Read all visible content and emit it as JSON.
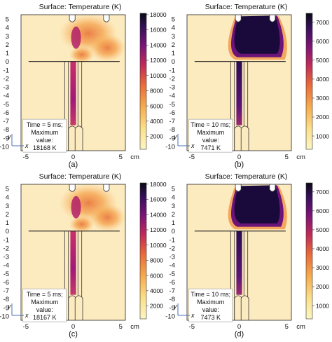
{
  "figure": {
    "panels": [
      {
        "id": "a",
        "caption": "(a)",
        "title": "Surface: Temperature (K)",
        "unit": "cm",
        "time_label": "Time = 5 ms;",
        "max_line1": "Maximum",
        "max_line2": "value:",
        "max_value": "18168 K"
      },
      {
        "id": "b",
        "caption": "(b)",
        "title": "Surface: Temperature (K)",
        "unit": "cm",
        "time_label": "Time = 10 ms;",
        "max_line1": "Maximum",
        "max_line2": "value:",
        "max_value": "7471 K"
      },
      {
        "id": "c",
        "caption": "(c)",
        "title": "Surface: Temperature (K)",
        "unit": "cm",
        "time_label": "Time = 5 ms;",
        "max_line1": "Maximum",
        "max_line2": "value:",
        "max_value": "18167 K"
      },
      {
        "id": "d",
        "caption": "(d)",
        "title": "Surface: Temperature (K)",
        "unit": "cm",
        "time_label": "Time = 10 ms;",
        "max_line1": "Maximum",
        "max_line2": "value:",
        "max_value": "7473 K"
      }
    ],
    "axis_arrow_labels": {
      "x": "x",
      "y": "y"
    },
    "colors": {
      "plot_bg": "#fdebc0",
      "jet_mid": "#f08b30",
      "jet_hot": "#b0206a",
      "jet_core": "#1a0a3c",
      "frame": "#222222"
    }
  },
  "chart_data": [
    {
      "type": "heatmap",
      "panel": "a",
      "title": "Surface: Temperature (K)",
      "unit": "cm",
      "xlim": [
        -5.5,
        5.5
      ],
      "ylim": [
        -10.5,
        5.5
      ],
      "xticks": [
        -5,
        0,
        5
      ],
      "yticks": [
        5,
        4,
        3,
        2,
        1,
        0,
        -1,
        -2,
        -3,
        -4,
        -5,
        -6,
        -7,
        -8,
        -9,
        -10
      ],
      "colorbar": {
        "min": 300,
        "max": 18168,
        "ticks": [
          18000,
          16000,
          14000,
          12000,
          10000,
          8000,
          6000,
          4000,
          2000
        ]
      },
      "annotation": [
        "Time = 5 ms;",
        "Maximum",
        "value:",
        "18168 K"
      ]
    },
    {
      "type": "heatmap",
      "panel": "b",
      "title": "Surface: Temperature (K)",
      "unit": "cm",
      "xlim": [
        -5.5,
        5.5
      ],
      "ylim": [
        -10.5,
        5.5
      ],
      "xticks": [
        -5,
        0,
        5
      ],
      "yticks": [
        5,
        4,
        3,
        2,
        1,
        0,
        -1,
        -2,
        -3,
        -4,
        -5,
        -6,
        -7,
        -8,
        -9,
        -10
      ],
      "colorbar": {
        "min": 300,
        "max": 7471,
        "ticks": [
          7000,
          6000,
          5000,
          4000,
          3000,
          2000,
          1000
        ]
      },
      "annotation": [
        "Time = 10 ms;",
        "Maximum",
        "value:",
        "7471 K"
      ]
    },
    {
      "type": "heatmap",
      "panel": "c",
      "title": "Surface: Temperature (K)",
      "unit": "cm",
      "xlim": [
        -5.5,
        5.5
      ],
      "ylim": [
        -10.5,
        5.5
      ],
      "xticks": [
        -5,
        0,
        5
      ],
      "yticks": [
        5,
        4,
        3,
        2,
        1,
        0,
        -1,
        -2,
        -3,
        -4,
        -5,
        -6,
        -7,
        -8,
        -9,
        -10
      ],
      "colorbar": {
        "min": 300,
        "max": 18167,
        "ticks": [
          18000,
          16000,
          14000,
          12000,
          10000,
          8000,
          6000,
          4000,
          2000
        ]
      },
      "annotation": [
        "Time = 5 ms;",
        "Maximum",
        "value:",
        "18167 K"
      ]
    },
    {
      "type": "heatmap",
      "panel": "d",
      "title": "Surface: Temperature (K)",
      "unit": "cm",
      "xlim": [
        -5.5,
        5.5
      ],
      "ylim": [
        -10.5,
        5.5
      ],
      "xticks": [
        -5,
        0,
        5
      ],
      "yticks": [
        5,
        4,
        3,
        2,
        1,
        0,
        -1,
        -2,
        -3,
        -4,
        -5,
        -6,
        -7,
        -8,
        -9,
        -10
      ],
      "colorbar": {
        "min": 300,
        "max": 7473,
        "ticks": [
          7000,
          6000,
          5000,
          4000,
          3000,
          2000,
          1000
        ]
      },
      "annotation": [
        "Time = 10 ms;",
        "Maximum",
        "value:",
        "7473 K"
      ]
    }
  ]
}
